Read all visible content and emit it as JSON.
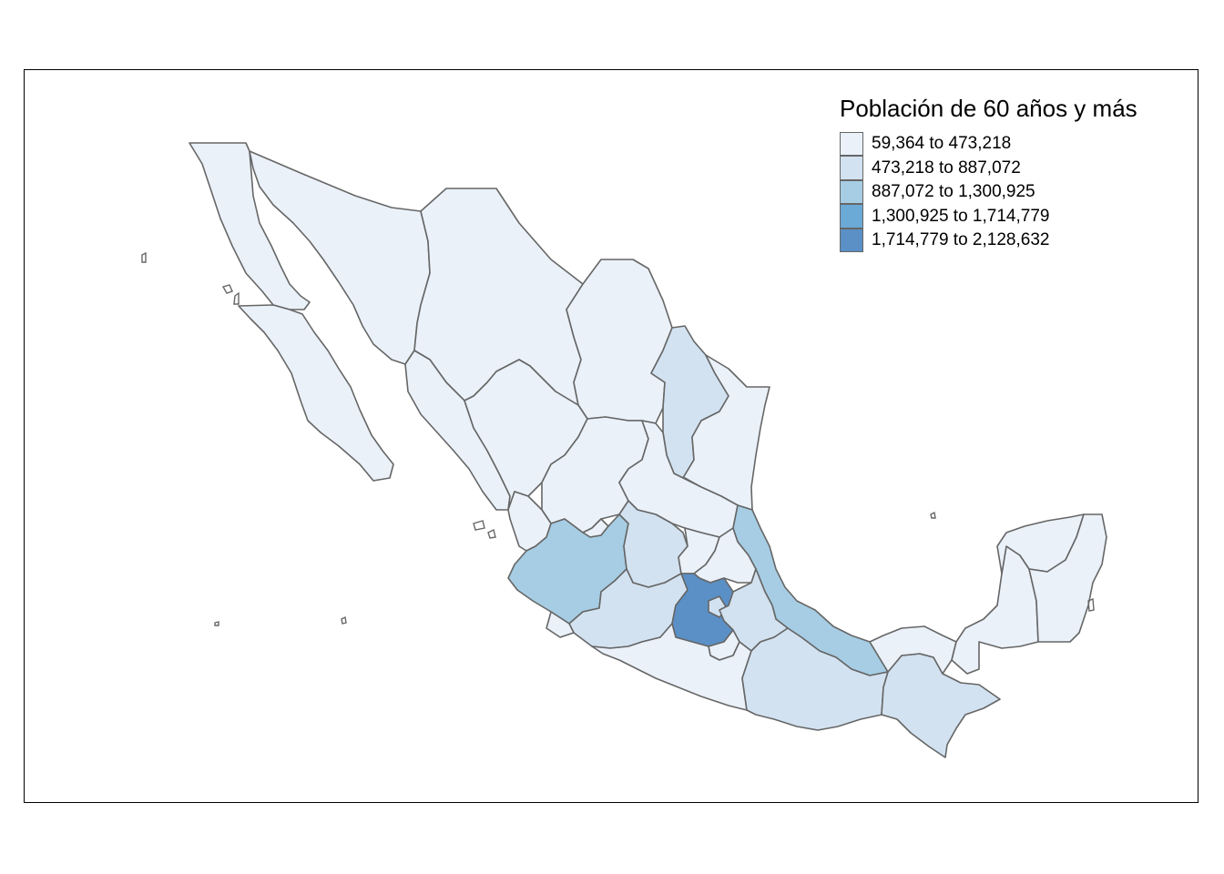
{
  "map": {
    "legend": {
      "title": "Población de 60 años y más",
      "classes": [
        {
          "label": "59,364 to 473,218",
          "color": "#eaf1f9"
        },
        {
          "label": "473,218 to 887,072",
          "color": "#d2e2f1"
        },
        {
          "label": "887,072 to 1,300,925",
          "color": "#a6cde3"
        },
        {
          "label": "1,300,925 to 1,714,779",
          "color": "#6ba9d6"
        },
        {
          "label": "1,714,779 to 2,128,632",
          "color": "#5b90c6"
        }
      ]
    },
    "states": [
      {
        "name": "Baja California",
        "class": 0
      },
      {
        "name": "Baja California Sur",
        "class": 0
      },
      {
        "name": "Sonora",
        "class": 0
      },
      {
        "name": "Chihuahua",
        "class": 0
      },
      {
        "name": "Coahuila",
        "class": 0
      },
      {
        "name": "Nuevo León",
        "class": 1
      },
      {
        "name": "Tamaulipas",
        "class": 0
      },
      {
        "name": "Sinaloa",
        "class": 0
      },
      {
        "name": "Durango",
        "class": 0
      },
      {
        "name": "Zacatecas",
        "class": 0
      },
      {
        "name": "San Luis Potosí",
        "class": 0
      },
      {
        "name": "Nayarit",
        "class": 0
      },
      {
        "name": "Aguascalientes",
        "class": 0
      },
      {
        "name": "Jalisco",
        "class": 2
      },
      {
        "name": "Guanajuato",
        "class": 1
      },
      {
        "name": "Querétaro",
        "class": 0
      },
      {
        "name": "Hidalgo",
        "class": 0
      },
      {
        "name": "Veracruz",
        "class": 2
      },
      {
        "name": "Michoacán",
        "class": 1
      },
      {
        "name": "Colima",
        "class": 0
      },
      {
        "name": "México",
        "class": 4
      },
      {
        "name": "Ciudad de México",
        "class": 1
      },
      {
        "name": "Tlaxcala",
        "class": 0
      },
      {
        "name": "Morelos",
        "class": 0
      },
      {
        "name": "Puebla",
        "class": 1
      },
      {
        "name": "Guerrero",
        "class": 0
      },
      {
        "name": "Oaxaca",
        "class": 1
      },
      {
        "name": "Chiapas",
        "class": 1
      },
      {
        "name": "Tabasco",
        "class": 0
      },
      {
        "name": "Campeche",
        "class": 0
      },
      {
        "name": "Yucatán",
        "class": 0
      },
      {
        "name": "Quintana Roo",
        "class": 0
      }
    ]
  }
}
